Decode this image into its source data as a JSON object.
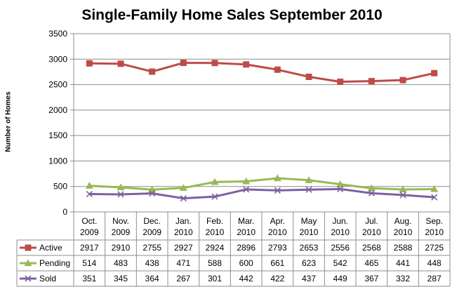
{
  "chart_data": {
    "type": "line",
    "title": "Single-Family Home Sales September 2010",
    "ylabel": "Number of Homes",
    "xlabel": "",
    "ylim": [
      0,
      3500
    ],
    "yticks": [
      "0",
      "500",
      "1000",
      "1500",
      "2000",
      "2500",
      "3000",
      "3500"
    ],
    "grid": true,
    "legend": "data-table",
    "categories": [
      [
        "Oct.",
        "2009"
      ],
      [
        "Nov.",
        "2009"
      ],
      [
        "Dec.",
        "2009"
      ],
      [
        "Jan.",
        "2010"
      ],
      [
        "Feb.",
        "2010"
      ],
      [
        "Mar.",
        "2010"
      ],
      [
        "Apr.",
        "2010"
      ],
      [
        "May",
        "2010"
      ],
      [
        "Jun.",
        "2010"
      ],
      [
        "Jul.",
        "2010"
      ],
      [
        "Aug.",
        "2010"
      ],
      [
        "Sep.",
        "2010"
      ]
    ],
    "series": [
      {
        "name": "Active",
        "color": "#BE4B48",
        "marker": "square",
        "values": [
          2917,
          2910,
          2755,
          2927,
          2924,
          2896,
          2793,
          2653,
          2556,
          2568,
          2588,
          2725
        ]
      },
      {
        "name": "Pending",
        "color": "#98B954",
        "marker": "triangle",
        "values": [
          514,
          483,
          438,
          471,
          588,
          600,
          661,
          623,
          542,
          465,
          441,
          448
        ]
      },
      {
        "name": "Sold",
        "color": "#7D60A0",
        "marker": "x",
        "values": [
          351,
          345,
          364,
          267,
          301,
          442,
          422,
          437,
          449,
          367,
          332,
          287
        ]
      }
    ]
  }
}
